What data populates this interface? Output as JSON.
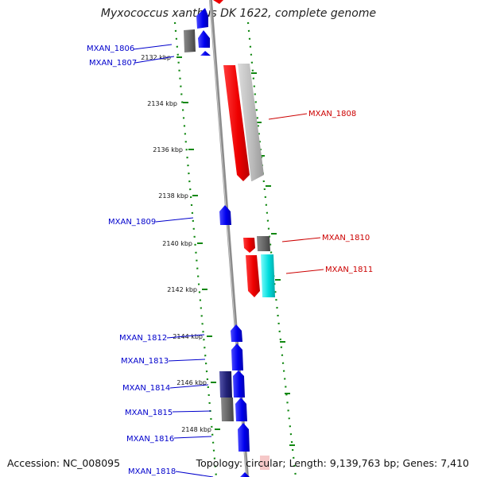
{
  "title": "Myxococcus xanthus DK 1622, complete genome",
  "footer": {
    "accession": "Accession: NC_008095",
    "topology": "Topology: circular; Length: 9,139,763 bp; Genes: 7,410"
  },
  "ticks": [
    "2132 kbp",
    "2134 kbp",
    "2136 kbp",
    "2138 kbp",
    "2140 kbp",
    "2142 kbp",
    "2144 kbp",
    "2146 kbp",
    "2148 kbp"
  ],
  "genes": [
    {
      "label": "MXAN_1806",
      "strand": "reverse",
      "color": "#0000cc"
    },
    {
      "label": "MXAN_1807",
      "strand": "reverse",
      "color": "#0000cc"
    },
    {
      "label": "MXAN_1808",
      "strand": "forward",
      "color": "#dd0000"
    },
    {
      "label": "MXAN_1809",
      "strand": "reverse",
      "color": "#0000cc"
    },
    {
      "label": "MXAN_1810",
      "strand": "forward",
      "color": "#dd0000"
    },
    {
      "label": "MXAN_1811",
      "strand": "forward",
      "color": "#dd0000"
    },
    {
      "label": "MXAN_1812",
      "strand": "reverse",
      "color": "#0000cc"
    },
    {
      "label": "MXAN_1813",
      "strand": "reverse",
      "color": "#0000cc"
    },
    {
      "label": "MXAN_1814",
      "strand": "reverse",
      "color": "#0000cc"
    },
    {
      "label": "MXAN_1815",
      "strand": "reverse",
      "color": "#0000cc"
    },
    {
      "label": "MXAN_1816",
      "strand": "reverse",
      "color": "#0000cc"
    },
    {
      "label": "MXAN_1818",
      "strand": "reverse",
      "color": "#0000cc"
    }
  ],
  "colors": {
    "backbone": "#888888",
    "gc_ring": "#118811",
    "reverse_gene": "#0000ee",
    "forward_gene": "#ee0000",
    "cds_grey": "#666666",
    "cds_light_grey": "#bbbbbb",
    "cds_cyan": "#00dddd"
  }
}
